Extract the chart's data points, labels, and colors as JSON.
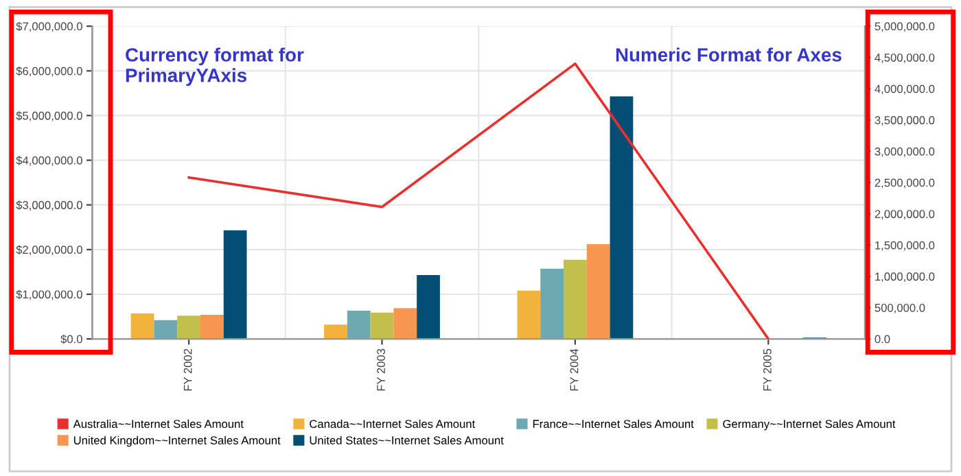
{
  "chart_data": {
    "type": "bar",
    "categories": [
      "FY 2002",
      "FY 2003",
      "FY 2004",
      "FY 2005"
    ],
    "series": [
      {
        "name": "Australia~~Internet Sales Amount",
        "color": "#e8312f",
        "type": "line",
        "axis": "y2",
        "values": [
          2580000,
          2110000,
          4400000,
          0
        ]
      },
      {
        "name": "Canada~~Internet Sales Amount",
        "color": "#f2b33d",
        "values": [
          570000,
          320000,
          1080000,
          10000
        ]
      },
      {
        "name": "France~~Internet Sales Amount",
        "color": "#6ea8b0",
        "values": [
          420000,
          630000,
          1570000,
          0
        ]
      },
      {
        "name": "Germany~~Internet Sales Amount",
        "color": "#c2c04a",
        "values": [
          520000,
          590000,
          1770000,
          0
        ]
      },
      {
        "name": "United Kingdom~~Internet Sales Amount",
        "color": "#f7964f",
        "values": [
          540000,
          690000,
          2120000,
          0
        ]
      },
      {
        "name": "United States~~Internet Sales Amount",
        "color": "#044e73",
        "values": [
          2430000,
          1430000,
          5430000,
          30000
        ]
      }
    ],
    "ylim": [
      0,
      7000000
    ],
    "yticks": [
      {
        "value": 0,
        "label": "$0.0"
      },
      {
        "value": 1000000,
        "label": "$1,000,000.0"
      },
      {
        "value": 2000000,
        "label": "$2,000,000.0"
      },
      {
        "value": 3000000,
        "label": "$3,000,000.0"
      },
      {
        "value": 4000000,
        "label": "$4,000,000.0"
      },
      {
        "value": 5000000,
        "label": "$5,000,000.0"
      },
      {
        "value": 6000000,
        "label": "$6,000,000.0"
      },
      {
        "value": 7000000,
        "label": "$7,000,000.0"
      }
    ],
    "y2lim": [
      0,
      5000000
    ],
    "y2ticks": [
      {
        "value": 0,
        "label": "0.0"
      },
      {
        "value": 500000,
        "label": "500,000.0"
      },
      {
        "value": 1000000,
        "label": "1,000,000.0"
      },
      {
        "value": 1500000,
        "label": "1,500,000.0"
      },
      {
        "value": 2000000,
        "label": "2,000,000.0"
      },
      {
        "value": 2500000,
        "label": "2,500,000.0"
      },
      {
        "value": 3000000,
        "label": "3,000,000.0"
      },
      {
        "value": 3500000,
        "label": "3,500,000.0"
      },
      {
        "value": 4000000,
        "label": "4,000,000.0"
      },
      {
        "value": 4500000,
        "label": "4,500,000.0"
      },
      {
        "value": 5000000,
        "label": "5,000,000.0"
      }
    ],
    "annotations": [
      "Currency format for PrimaryYAxis",
      "Numeric Format for Axes"
    ],
    "grid": true,
    "legend": "bottom",
    "marker": "none"
  }
}
